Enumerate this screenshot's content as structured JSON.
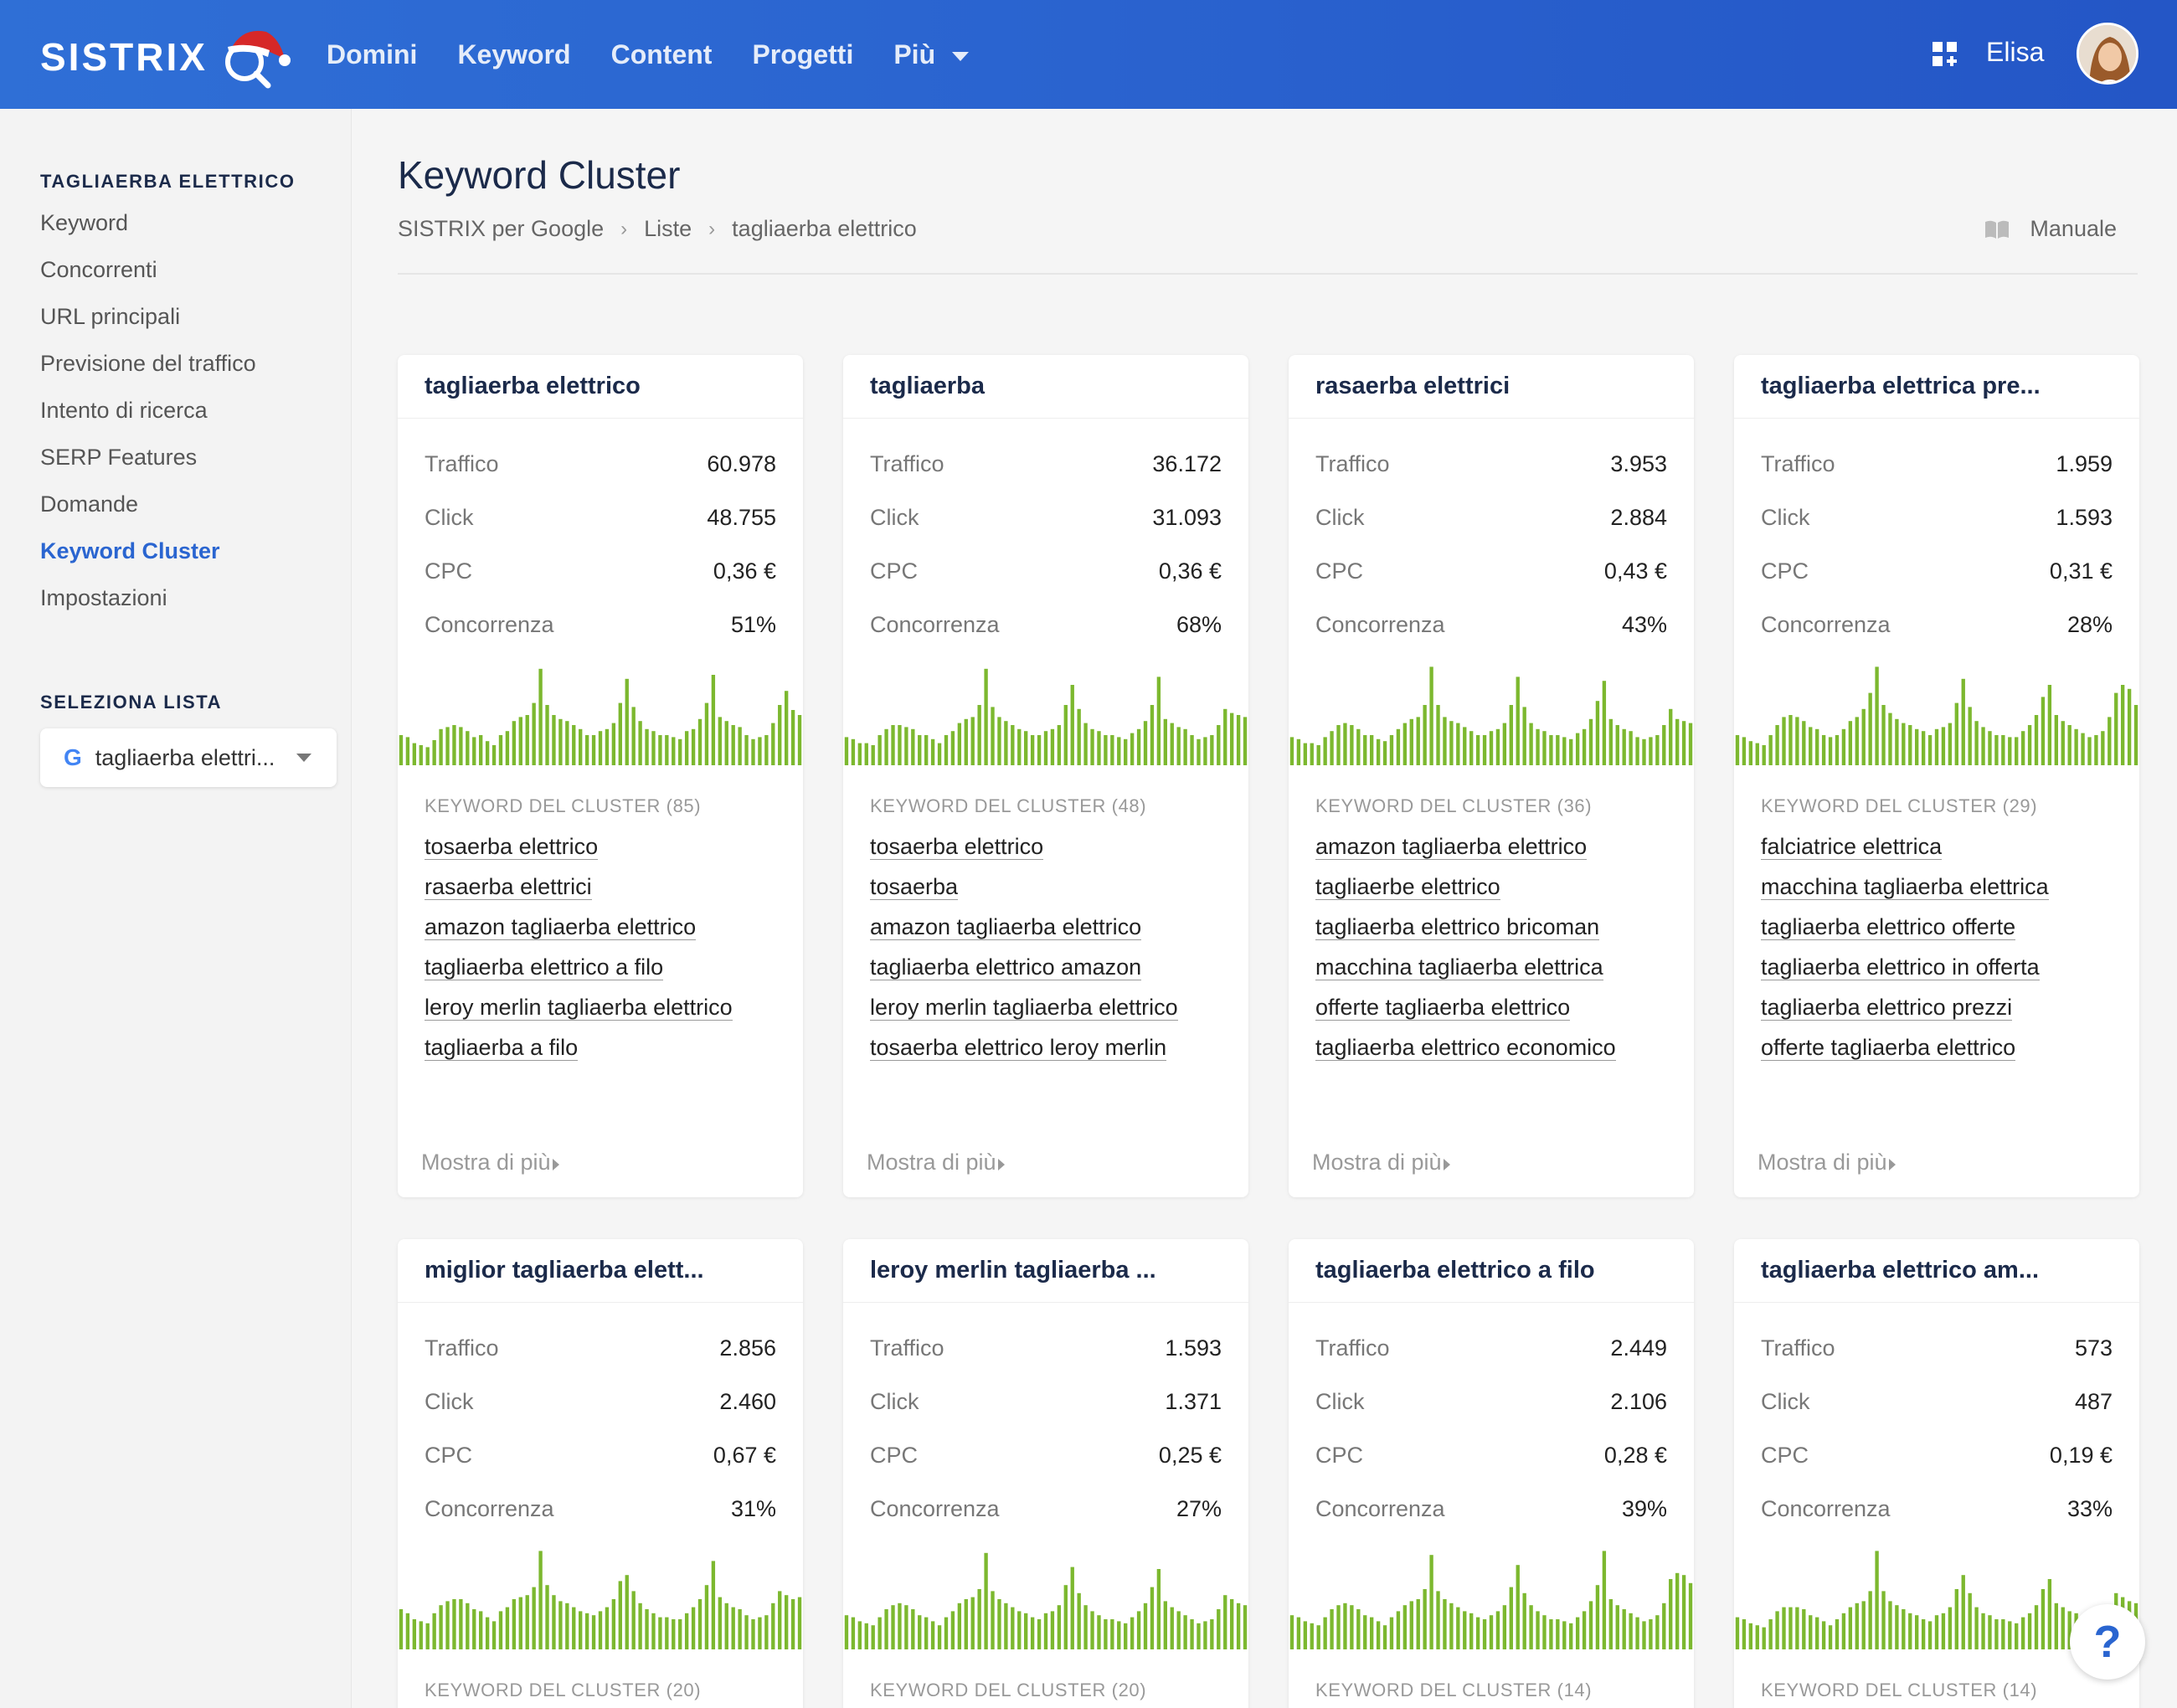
{
  "header": {
    "logo_text": "SISTRIX",
    "nav": [
      "Domini",
      "Keyword",
      "Content",
      "Progetti",
      "Più"
    ],
    "user_name": "Elisa"
  },
  "sidebar": {
    "project_heading": "TAGLIAERBA ELETTRICO",
    "items": [
      "Keyword",
      "Concorrenti",
      "URL principali",
      "Previsione del traffico",
      "Intento di ricerca",
      "SERP Features",
      "Domande",
      "Keyword Cluster",
      "Impostazioni"
    ],
    "active_item": "Keyword Cluster",
    "list_heading": "SELEZIONA LISTA",
    "list_selected": "tagliaerba elettri...",
    "list_icon": "G"
  },
  "page": {
    "title": "Keyword Cluster",
    "breadcrumb": [
      "SISTRIX per Google",
      "Liste",
      "tagliaerba elettrico"
    ],
    "manual_label": "Manuale"
  },
  "labels": {
    "traffic": "Traffico",
    "clicks": "Click",
    "cpc": "CPC",
    "competition": "Concorrenza",
    "show_more": "Mostra di più"
  },
  "bar_color": "#7cb82f",
  "clusters": [
    {
      "title": "tagliaerba elettrico",
      "traffic": "60.978",
      "clicks": "48.755",
      "cpc": "0,36 €",
      "competition": "51%",
      "keyword_heading": "KEYWORD DEL CLUSTER (85)",
      "keywords": [
        "tosaerba elettrico",
        "rasaerba elettrici",
        "amazon tagliaerba elettrico",
        "tagliaerba elettrico a filo",
        "leroy merlin tagliaerba elettrico",
        "tagliaerba a filo"
      ]
    },
    {
      "title": "tagliaerba",
      "traffic": "36.172",
      "clicks": "31.093",
      "cpc": "0,36 €",
      "competition": "68%",
      "keyword_heading": "KEYWORD DEL CLUSTER (48)",
      "keywords": [
        "tosaerba elettrico",
        "tosaerba",
        "amazon tagliaerba elettrico",
        "tagliaerba elettrico amazon",
        "leroy merlin tagliaerba elettrico",
        "tosaerba elettrico leroy merlin"
      ]
    },
    {
      "title": "rasaerba elettrici",
      "traffic": "3.953",
      "clicks": "2.884",
      "cpc": "0,43 €",
      "competition": "43%",
      "keyword_heading": "KEYWORD DEL CLUSTER (36)",
      "keywords": [
        "amazon tagliaerba elettrico",
        "tagliaerbe elettrico",
        "tagliaerba elettrico bricoman",
        "macchina tagliaerba elettrica",
        "offerte tagliaerba elettrico",
        "tagliaerba elettrico economico"
      ]
    },
    {
      "title": "tagliaerba elettrica pre...",
      "traffic": "1.959",
      "clicks": "1.593",
      "cpc": "0,31 €",
      "competition": "28%",
      "keyword_heading": "KEYWORD DEL CLUSTER (29)",
      "keywords": [
        "falciatrice elettrica",
        "macchina tagliaerba elettrica",
        "tagliaerba elettrico offerte",
        "tagliaerba elettrico in offerta",
        "tagliaerba elettrico prezzi",
        "offerte tagliaerba elettrico"
      ]
    },
    {
      "title": "miglior tagliaerba elett...",
      "traffic": "2.856",
      "clicks": "2.460",
      "cpc": "0,67 €",
      "competition": "31%",
      "keyword_heading": "KEYWORD DEL CLUSTER (20)",
      "keywords": []
    },
    {
      "title": "leroy merlin tagliaerba ...",
      "traffic": "1.593",
      "clicks": "1.371",
      "cpc": "0,25 €",
      "competition": "27%",
      "keyword_heading": "KEYWORD DEL CLUSTER (20)",
      "keywords": []
    },
    {
      "title": "tagliaerba elettrico a filo",
      "traffic": "2.449",
      "clicks": "2.106",
      "cpc": "0,28 €",
      "competition": "39%",
      "keyword_heading": "KEYWORD DEL CLUSTER (14)",
      "keywords": []
    },
    {
      "title": "tagliaerba elettrico am...",
      "traffic": "573",
      "clicks": "487",
      "cpc": "0,19 €",
      "competition": "33%",
      "keyword_heading": "KEYWORD DEL CLUSTER (14)",
      "keywords": []
    }
  ],
  "trends": {
    "r1c1": [
      30,
      28,
      22,
      20,
      18,
      25,
      36,
      38,
      40,
      38,
      34,
      28,
      30,
      24,
      20,
      30,
      34,
      44,
      48,
      50,
      62,
      96,
      60,
      50,
      46,
      44,
      40,
      36,
      30,
      30,
      34,
      36,
      42,
      62,
      86,
      58,
      44,
      36,
      34,
      30,
      30,
      28,
      26,
      34,
      36,
      46,
      62,
      90,
      48,
      44,
      40,
      38,
      30,
      26,
      28,
      30,
      42,
      60,
      74,
      55,
      50
    ],
    "r1c2": [
      28,
      26,
      22,
      22,
      20,
      30,
      36,
      40,
      40,
      38,
      36,
      30,
      30,
      26,
      22,
      30,
      34,
      42,
      46,
      48,
      60,
      96,
      58,
      48,
      44,
      40,
      36,
      34,
      30,
      30,
      34,
      36,
      40,
      60,
      80,
      56,
      42,
      36,
      34,
      30,
      30,
      28,
      26,
      32,
      36,
      44,
      60,
      88,
      46,
      42,
      38,
      36,
      30,
      26,
      28,
      30,
      40,
      56,
      52,
      50,
      48
    ],
    "r1c3": [
      28,
      26,
      22,
      22,
      20,
      28,
      34,
      40,
      42,
      40,
      36,
      30,
      30,
      26,
      24,
      30,
      36,
      42,
      46,
      48,
      60,
      98,
      60,
      48,
      44,
      42,
      38,
      34,
      30,
      30,
      34,
      36,
      42,
      60,
      88,
      58,
      42,
      36,
      34,
      30,
      30,
      28,
      26,
      32,
      36,
      46,
      64,
      84,
      46,
      40,
      36,
      34,
      28,
      26,
      28,
      30,
      40,
      56,
      46,
      44,
      42
    ],
    "r1c4": [
      30,
      28,
      24,
      22,
      20,
      30,
      40,
      48,
      50,
      48,
      44,
      38,
      36,
      30,
      28,
      30,
      36,
      44,
      48,
      56,
      72,
      98,
      60,
      52,
      46,
      42,
      40,
      36,
      34,
      30,
      36,
      38,
      42,
      62,
      86,
      58,
      44,
      38,
      34,
      30,
      30,
      28,
      28,
      34,
      40,
      50,
      68,
      80,
      50,
      44,
      40,
      36,
      32,
      28,
      30,
      34,
      48,
      72,
      80,
      76,
      60
    ],
    "r2c1": [
      40,
      36,
      30,
      28,
      26,
      36,
      44,
      48,
      50,
      50,
      46,
      40,
      38,
      32,
      28,
      38,
      42,
      50,
      52,
      54,
      62,
      98,
      64,
      54,
      48,
      46,
      42,
      38,
      36,
      34,
      38,
      42,
      50,
      68,
      74,
      58,
      46,
      40,
      36,
      32,
      32,
      30,
      30,
      36,
      42,
      50,
      64,
      88,
      52,
      46,
      42,
      40,
      34,
      30,
      32,
      34,
      46,
      58,
      54,
      50,
      52
    ],
    "r2c2": [
      34,
      32,
      28,
      26,
      24,
      32,
      40,
      44,
      46,
      44,
      40,
      34,
      32,
      28,
      24,
      32,
      38,
      46,
      50,
      52,
      60,
      96,
      58,
      50,
      46,
      42,
      38,
      36,
      32,
      30,
      36,
      38,
      44,
      64,
      82,
      56,
      44,
      38,
      34,
      30,
      30,
      28,
      26,
      32,
      38,
      46,
      62,
      80,
      48,
      42,
      38,
      34,
      30,
      26,
      28,
      30,
      40,
      54,
      50,
      46,
      44
    ],
    "r2c3": [
      34,
      32,
      28,
      26,
      24,
      32,
      40,
      44,
      46,
      44,
      40,
      34,
      32,
      28,
      24,
      32,
      38,
      44,
      48,
      50,
      60,
      94,
      58,
      50,
      46,
      42,
      38,
      36,
      32,
      30,
      34,
      38,
      44,
      62,
      84,
      56,
      44,
      38,
      34,
      30,
      30,
      28,
      26,
      32,
      38,
      48,
      64,
      98,
      50,
      44,
      40,
      36,
      32,
      28,
      30,
      34,
      46,
      70,
      76,
      74,
      66
    ],
    "r2c4": [
      32,
      30,
      26,
      24,
      22,
      30,
      38,
      42,
      42,
      42,
      40,
      34,
      32,
      28,
      24,
      30,
      36,
      42,
      46,
      48,
      58,
      98,
      58,
      48,
      44,
      40,
      36,
      34,
      30,
      28,
      34,
      36,
      42,
      60,
      74,
      56,
      42,
      36,
      34,
      30,
      30,
      28,
      26,
      32,
      36,
      44,
      60,
      70,
      46,
      42,
      38,
      36,
      30,
      26,
      28,
      30,
      40,
      56,
      52,
      48,
      46
    ]
  }
}
